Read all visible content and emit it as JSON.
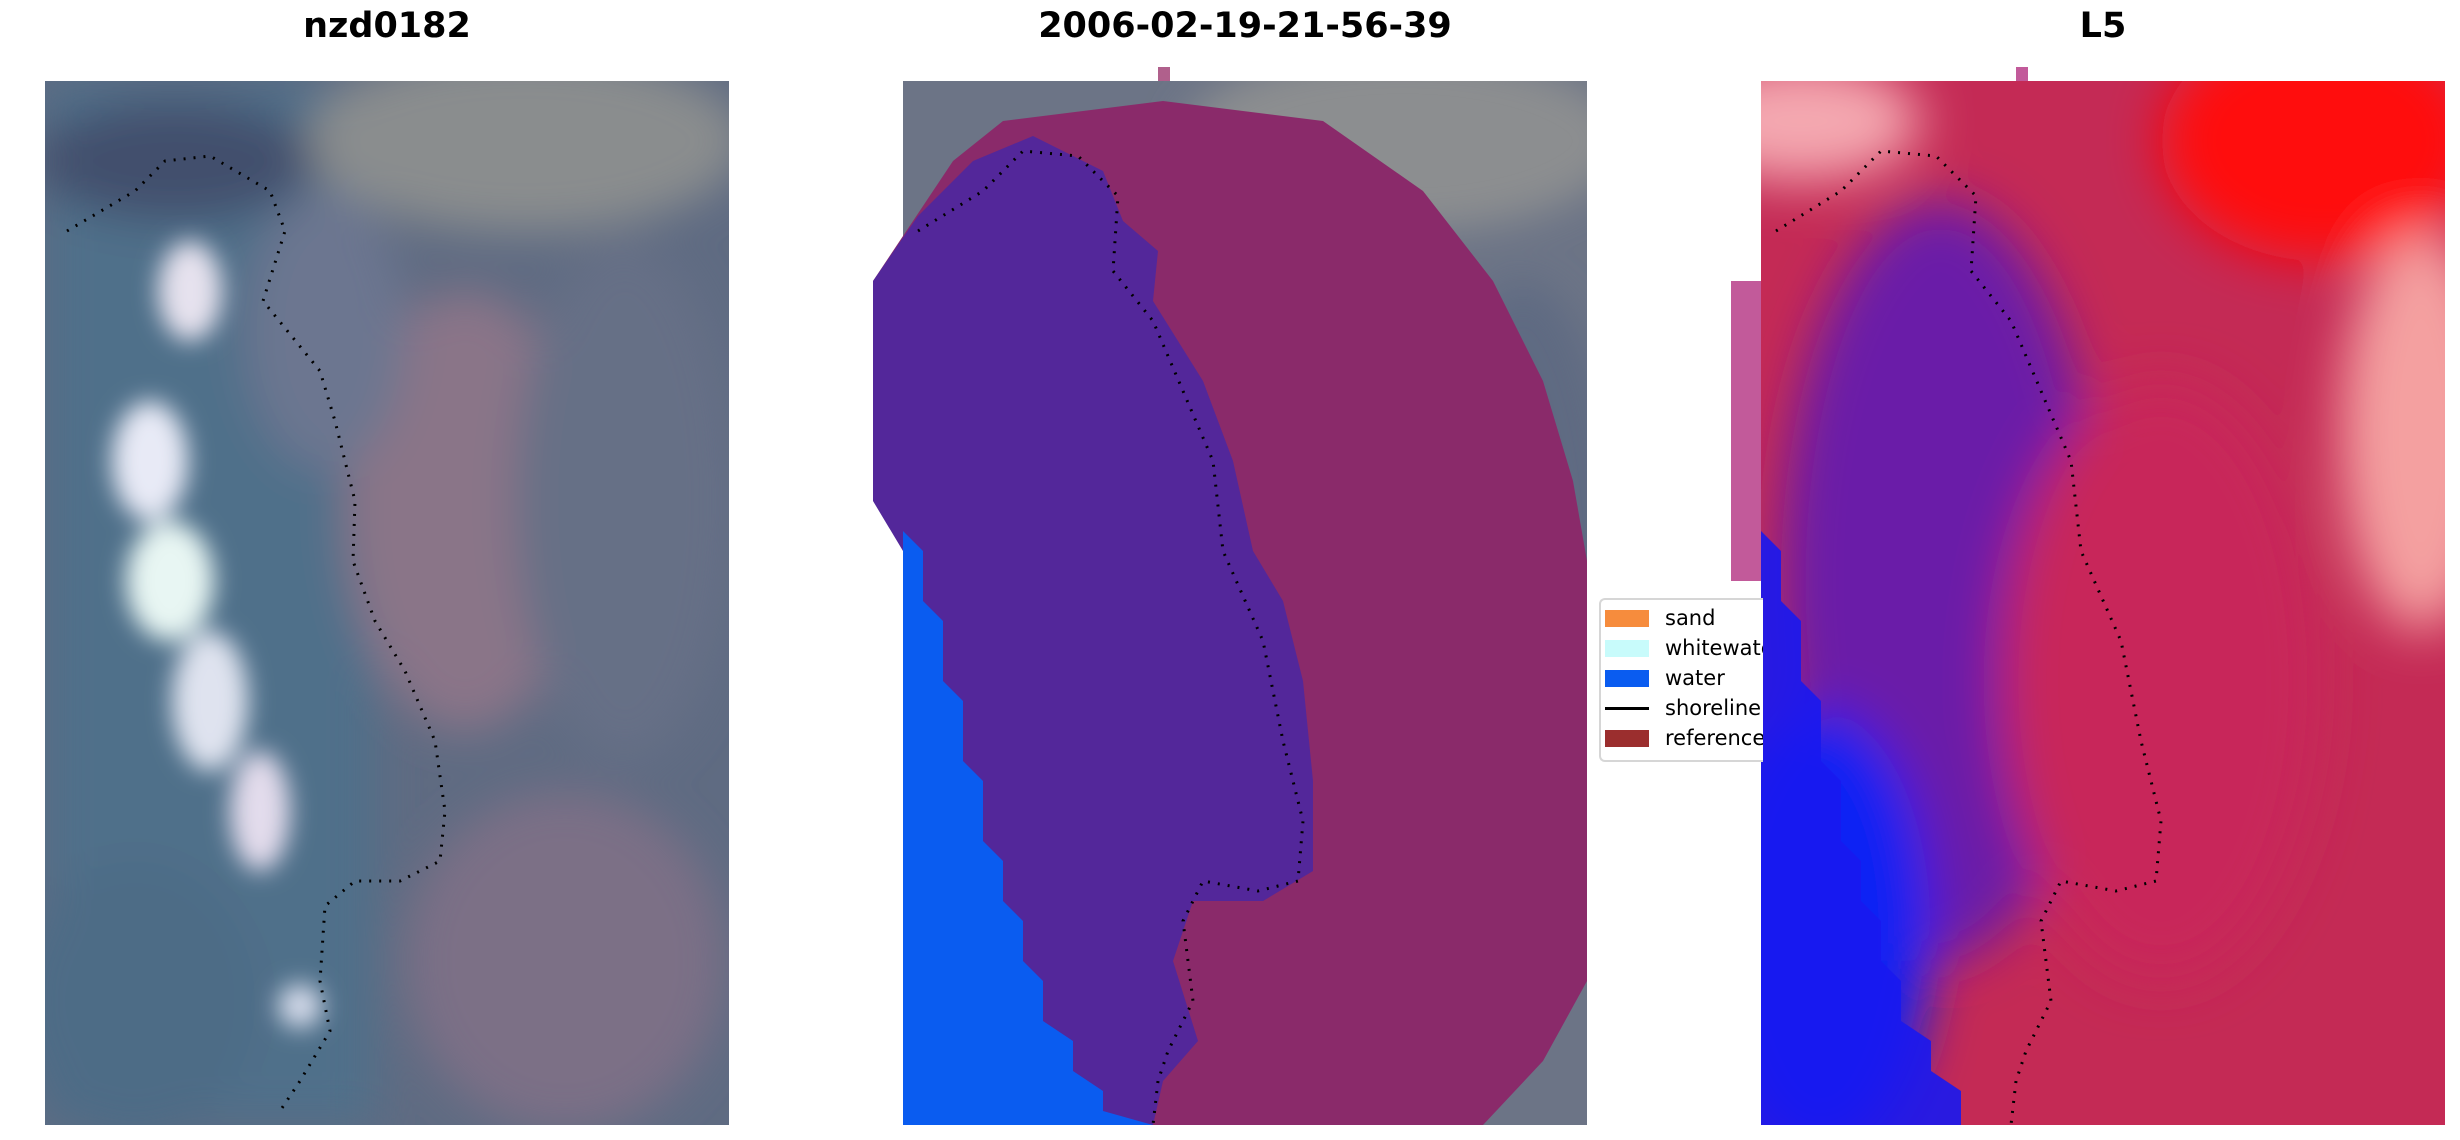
{
  "panels": [
    {
      "title": "nzd0182",
      "kind": "rgb"
    },
    {
      "title": "2006-02-19-21-56-39",
      "kind": "classified"
    },
    {
      "title": "L5",
      "kind": "index"
    }
  ],
  "legend": {
    "items": [
      {
        "label": "sand",
        "color": "#f68c3d",
        "type": "patch"
      },
      {
        "label": "whitewater",
        "color": "#c8fbfb",
        "type": "patch"
      },
      {
        "label": "water",
        "color": "#0a5cf0",
        "type": "patch"
      },
      {
        "label": "shoreline",
        "color": "#000000",
        "type": "line"
      },
      {
        "label": "reference",
        "color": "#9b2e2e",
        "type": "patch"
      }
    ]
  },
  "colors": {
    "water_class": "#0a5cf0",
    "sand_overlay": "#8a2a6a",
    "water_overlay": "#53279a",
    "shoreline": "#000000"
  }
}
